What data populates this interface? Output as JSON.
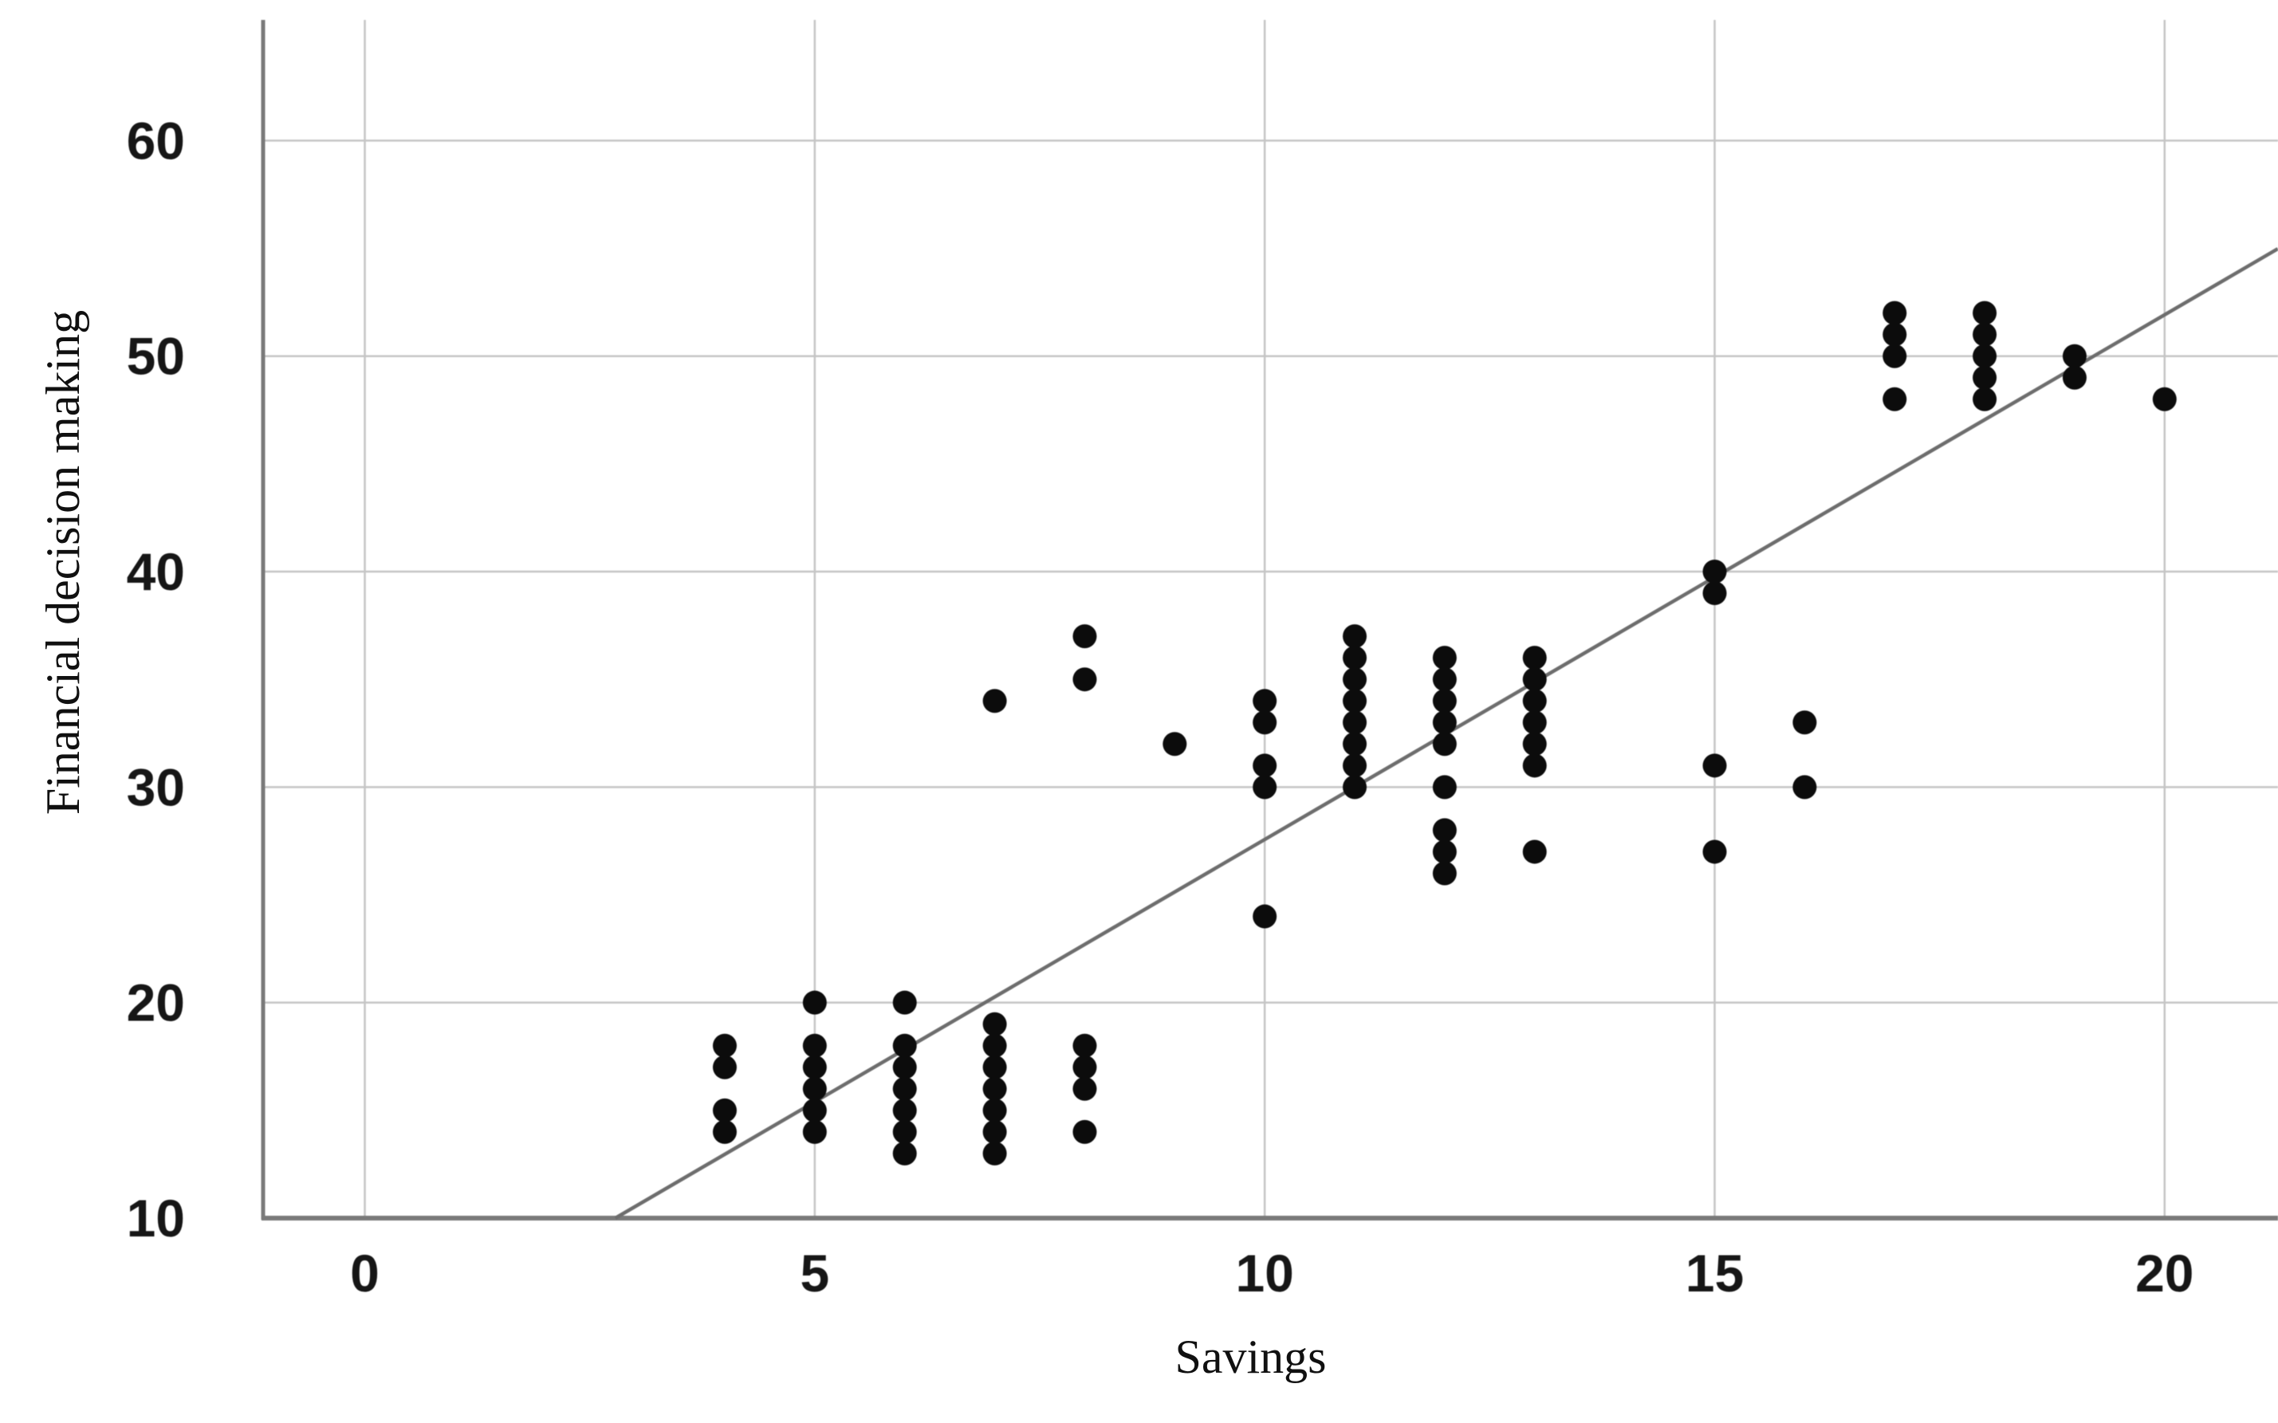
{
  "chart_data": {
    "type": "scatter",
    "title": "",
    "xlabel": "Savings",
    "ylabel": "Financial decision making",
    "x_ticks": [
      0,
      5,
      10,
      15,
      20
    ],
    "y_ticks": [
      10,
      20,
      30,
      40,
      50,
      60
    ],
    "xlim": [
      -1.13,
      21.26
    ],
    "ylim": [
      10,
      65.6
    ],
    "grid": true,
    "legend": false,
    "points": [
      [
        4,
        18
      ],
      [
        4,
        17
      ],
      [
        4,
        15
      ],
      [
        4,
        14
      ],
      [
        5,
        20
      ],
      [
        5,
        18
      ],
      [
        5,
        17
      ],
      [
        5,
        16
      ],
      [
        5,
        15
      ],
      [
        5,
        14
      ],
      [
        6,
        20
      ],
      [
        6,
        18
      ],
      [
        6,
        17
      ],
      [
        6,
        16
      ],
      [
        6,
        15
      ],
      [
        6,
        14
      ],
      [
        6,
        13
      ],
      [
        7,
        34
      ],
      [
        7,
        19
      ],
      [
        7,
        18
      ],
      [
        7,
        17
      ],
      [
        7,
        16
      ],
      [
        7,
        15
      ],
      [
        7,
        14
      ],
      [
        7,
        13
      ],
      [
        8,
        37
      ],
      [
        8,
        35
      ],
      [
        8,
        18
      ],
      [
        8,
        17
      ],
      [
        8,
        16
      ],
      [
        8,
        14
      ],
      [
        9,
        32
      ],
      [
        10,
        34
      ],
      [
        10,
        33
      ],
      [
        10,
        31
      ],
      [
        10,
        30
      ],
      [
        10,
        24
      ],
      [
        11,
        37
      ],
      [
        11,
        36
      ],
      [
        11,
        35
      ],
      [
        11,
        34
      ],
      [
        11,
        33
      ],
      [
        11,
        32
      ],
      [
        11,
        31
      ],
      [
        11,
        30
      ],
      [
        12,
        36
      ],
      [
        12,
        35
      ],
      [
        12,
        34
      ],
      [
        12,
        33
      ],
      [
        12,
        32
      ],
      [
        12,
        30
      ],
      [
        12,
        28
      ],
      [
        12,
        27
      ],
      [
        12,
        26
      ],
      [
        13,
        36
      ],
      [
        13,
        35
      ],
      [
        13,
        34
      ],
      [
        13,
        33
      ],
      [
        13,
        32
      ],
      [
        13,
        31
      ],
      [
        13,
        27
      ],
      [
        15,
        40
      ],
      [
        15,
        39
      ],
      [
        15,
        31
      ],
      [
        15,
        27
      ],
      [
        16,
        33
      ],
      [
        16,
        30
      ],
      [
        17,
        52
      ],
      [
        17,
        51
      ],
      [
        17,
        50
      ],
      [
        17,
        48
      ],
      [
        18,
        52
      ],
      [
        18,
        51
      ],
      [
        18,
        50
      ],
      [
        18,
        49
      ],
      [
        18,
        48
      ],
      [
        19,
        50
      ],
      [
        19,
        49
      ],
      [
        20,
        48
      ]
    ],
    "fit_line": {
      "slope": 2.435,
      "intercept": 3.22,
      "endpoints": [
        [
          2.784,
          10.0
        ],
        [
          21.258,
          54.98
        ]
      ]
    },
    "colors": {
      "dot": "#0c0c0c",
      "grid": "#c5c5c5",
      "axis": "#7a7a7a",
      "fit_line": "#6d6d6d",
      "tick_text": "#161616",
      "background": "#ffffff"
    }
  }
}
